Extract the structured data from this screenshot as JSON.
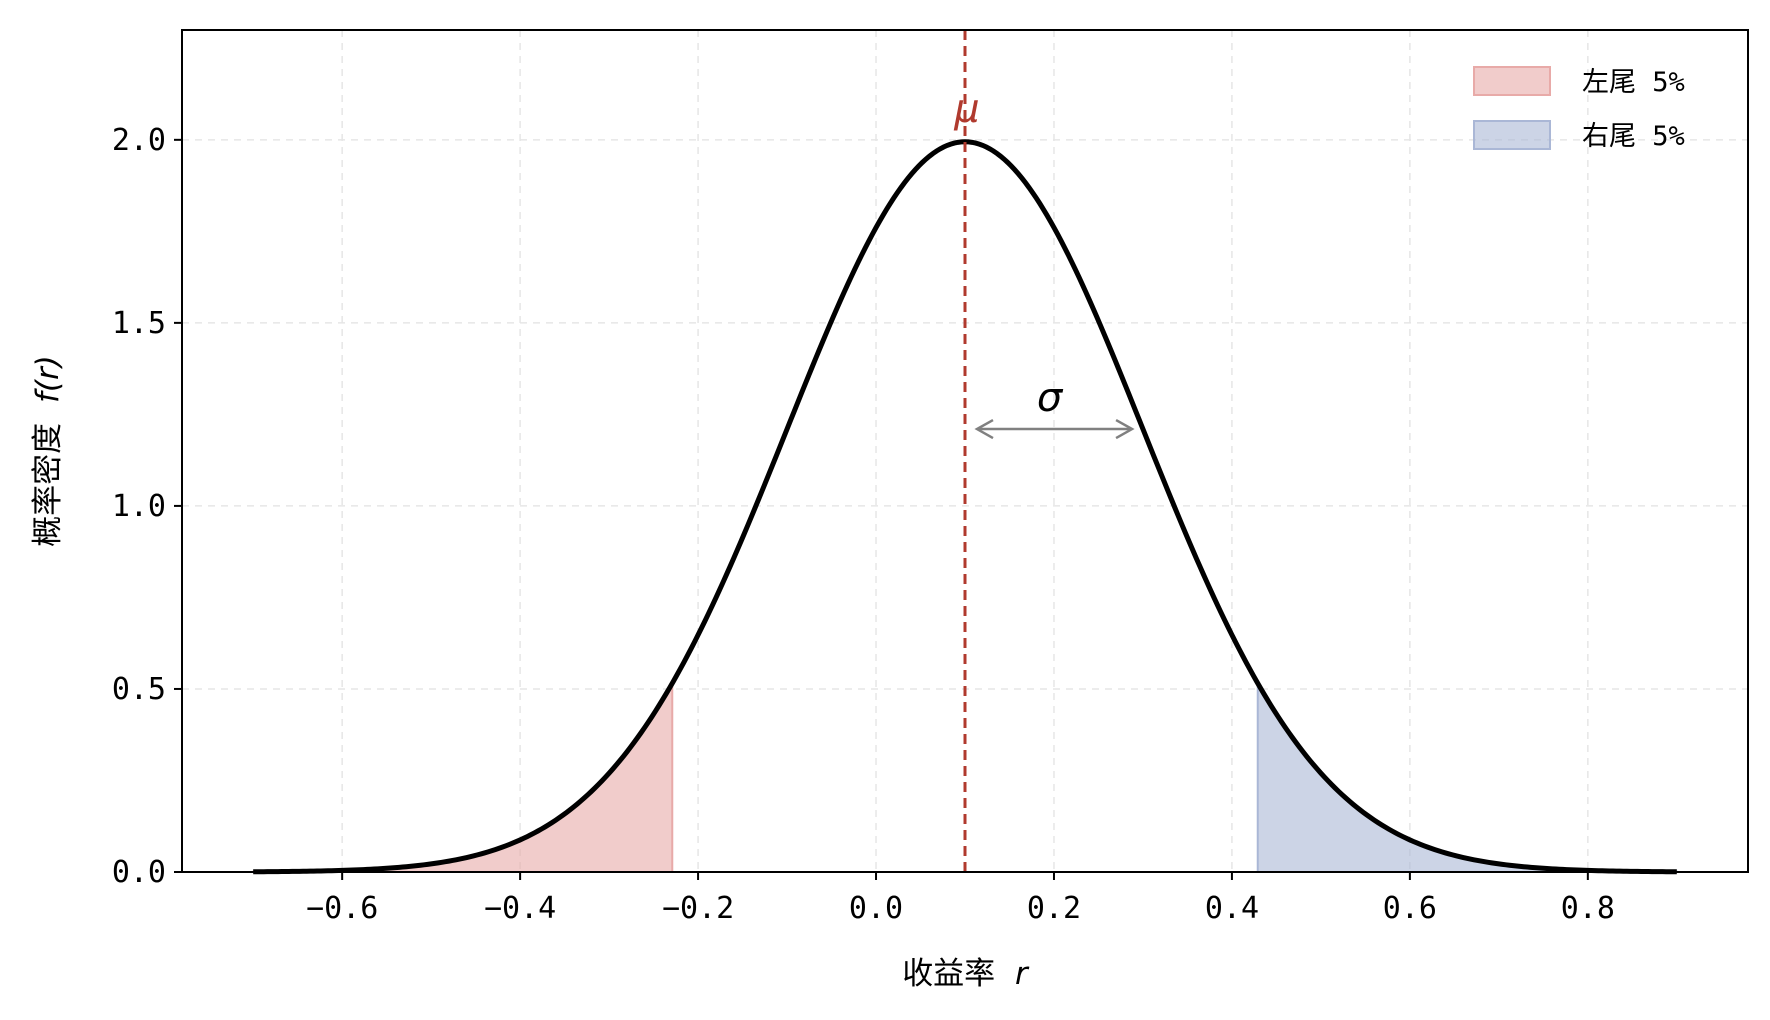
{
  "chart_data": {
    "type": "line",
    "title": "",
    "xlabel": "收益率",
    "xlabel_var": "r",
    "ylabel": "概率密度",
    "ylabel_var": "f(r)",
    "xlim": [
      -0.78,
      0.98
    ],
    "ylim": [
      0,
      2.3
    ],
    "x_ticks": [
      -0.6,
      -0.4,
      -0.2,
      0.0,
      0.2,
      0.4,
      0.6,
      0.8
    ],
    "x_tick_labels": [
      "−0.6",
      "−0.4",
      "−0.2",
      "0.0",
      "0.2",
      "0.4",
      "0.6",
      "0.8"
    ],
    "y_ticks": [
      0.0,
      0.5,
      1.0,
      1.5,
      2.0
    ],
    "y_tick_labels": [
      "0.0",
      "0.5",
      "1.0",
      "1.5",
      "2.0"
    ],
    "grid": true,
    "curve": {
      "distribution": "normal",
      "mu": 0.1,
      "sigma": 0.2,
      "x_range": [
        -0.7,
        0.9
      ],
      "color": "#000000"
    },
    "mean_line": {
      "x": 0.1,
      "label": "μ",
      "color": "#b03a2e",
      "style": "dashed"
    },
    "sigma_annotation": {
      "x_from": 0.1,
      "x_to": 0.29,
      "y": 1.21,
      "label": "σ",
      "color": "#808080"
    },
    "tails": [
      {
        "name": "左尾 5%",
        "x_from": -0.7,
        "x_to": -0.229,
        "color": "#e8aaa8"
      },
      {
        "name": "右尾 5%",
        "x_from": 0.429,
        "x_to": 0.9,
        "color": "#aab7d6"
      }
    ],
    "legend": {
      "position": "top-right",
      "entries": [
        "左尾 5%",
        "右尾 5%"
      ]
    }
  }
}
